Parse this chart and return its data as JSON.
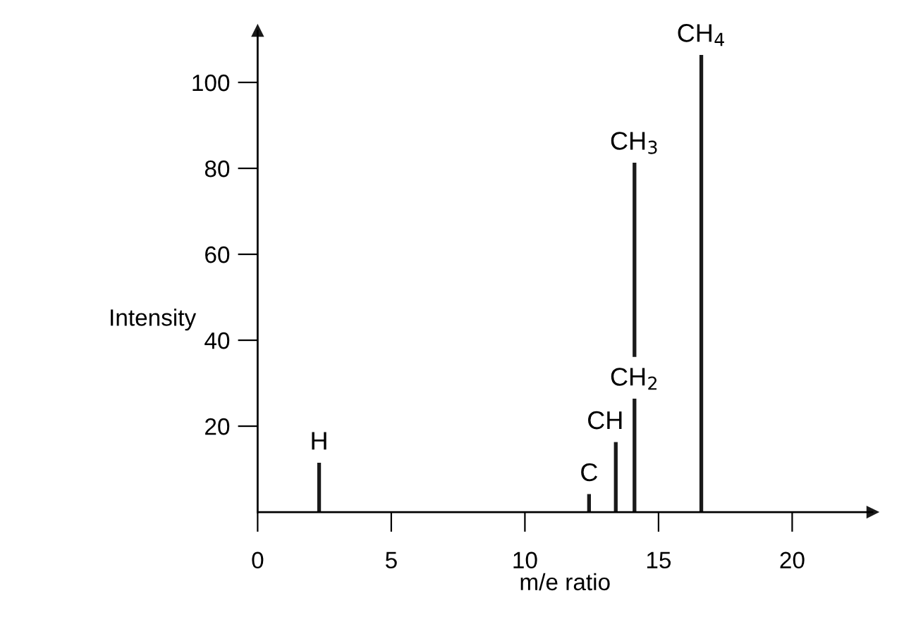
{
  "chart_data": {
    "type": "bar",
    "xlabel": "m/e ratio",
    "ylabel": "Intensity",
    "series": [
      {
        "x": [
          2.3,
          12.4,
          13.4,
          14.1,
          16.6
        ],
        "values": [
          11.5,
          4.2,
          16.3,
          26.4,
          106.4
        ],
        "color": "#1a1a1a"
      },
      {
        "x": [
          14.1
        ],
        "values": [
          45.2
        ],
        "base": [
          36.1
        ],
        "color": "#1a1a1a"
      }
    ],
    "xlim": [
      0,
      23
    ],
    "ylim": [
      0,
      112
    ],
    "xticks": [
      0,
      5,
      10,
      15,
      20
    ],
    "yticks": [
      20,
      40,
      60,
      80,
      100
    ],
    "grid": false,
    "annotations": [
      {
        "text": "H",
        "x": 2.3,
        "y": 11.5
      },
      {
        "text": "C",
        "x": 12.4,
        "y": 4.2
      },
      {
        "text": "CH",
        "x": 13.4,
        "y": 16.3
      },
      {
        "text": "CH$_{2}$",
        "x": 14.1,
        "y": 26.4
      },
      {
        "text": "CH$_{3}$",
        "x": 14.1,
        "y": 81.3
      },
      {
        "text": "CH$_{4}$",
        "x": 16.6,
        "y": 106.4
      }
    ]
  }
}
